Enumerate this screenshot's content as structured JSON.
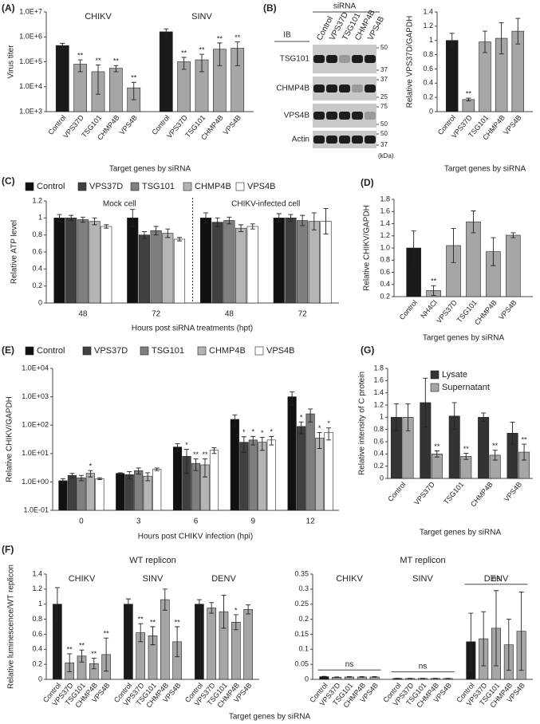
{
  "chart_data": [
    {
      "type": "bar",
      "panel": "(A)",
      "ylabel": "Virus titer",
      "xlabel": "Target genes by siRNA",
      "log_scale": true,
      "ylim": [
        1000,
        10000000
      ],
      "yticks": [
        {
          "value": 1000,
          "label": "1.0E+3"
        },
        {
          "value": 10000,
          "label": "1.0E+4"
        },
        {
          "value": 100000,
          "label": "1.0E+5"
        },
        {
          "value": 1000000,
          "label": "1.0E+6"
        },
        {
          "value": 10000000,
          "label": "1.0E+7"
        }
      ],
      "categories": [
        "Control",
        "VPS37D",
        "TSG101",
        "CHMP4B",
        "VPS4B"
      ],
      "colors": [
        "#1a1a1a",
        "#a6a6a6",
        "#a6a6a6",
        "#a6a6a6",
        "#a6a6a6"
      ],
      "groups": [
        {
          "name": "CHIKV",
          "values": [
            450000,
            80000,
            40000,
            55000,
            9000
          ],
          "errors": [
            100000,
            40000,
            35000,
            15000,
            6000
          ],
          "stars": [
            null,
            "**",
            "**",
            "**",
            "**"
          ]
        },
        {
          "name": "SINV",
          "values": [
            1600000,
            100000,
            120000,
            320000,
            350000
          ],
          "errors": [
            500000,
            50000,
            80000,
            250000,
            280000
          ],
          "stars": [
            null,
            "**",
            "**",
            "**",
            "**"
          ]
        }
      ]
    },
    {
      "type": "blot",
      "panel": "(B)",
      "title": "siRNA",
      "row_header": "IB",
      "lanes": [
        "Control",
        "VPS37D",
        "TSG101",
        "CHMP4B",
        "VPS4B"
      ],
      "rows": [
        {
          "name": "TSG101",
          "markers": [
            50,
            37
          ]
        },
        {
          "name": "CHMP4B",
          "markers": [
            37,
            25
          ]
        },
        {
          "name": "VPS4B",
          "markers": [
            75,
            50
          ]
        },
        {
          "name": "Actin",
          "markers": [
            50,
            37
          ]
        }
      ],
      "unit": "(kDa)"
    },
    {
      "type": "bar",
      "ylabel": "Relative VPS37D/GAPDH",
      "xlabel": "Target genes by siRNA",
      "ylim": [
        0,
        1.4
      ],
      "yticks": [
        0,
        0.2,
        0.4,
        0.6,
        0.8,
        1,
        1.2,
        1.4
      ],
      "categories": [
        "Control",
        "VPS37D",
        "TSG101",
        "CHMP4B",
        "VPS4B"
      ],
      "colors": [
        "#1a1a1a",
        "#a6a6a6",
        "#a6a6a6",
        "#a6a6a6",
        "#a6a6a6"
      ],
      "groups": [
        {
          "values": [
            1,
            0.17,
            0.98,
            1.03,
            1.13
          ],
          "errors": [
            0.1,
            0.02,
            0.15,
            0.22,
            0.18
          ],
          "stars": [
            null,
            "**",
            null,
            null,
            null
          ]
        }
      ]
    },
    {
      "type": "bar",
      "panel": "(C)",
      "ylabel": "Relative ATP level",
      "xlabel": "Hours post siRNA treatments (hpt)",
      "legend": "top",
      "ylim": [
        0,
        1.2
      ],
      "yticks": [
        0,
        0.2,
        0.4,
        0.6,
        0.8,
        1,
        1.2
      ],
      "annotations": [
        "Mock cell",
        "CHIKV-infected cell"
      ],
      "categories": [
        "48",
        "72",
        "48",
        "72"
      ],
      "series": [
        {
          "name": "Control",
          "color": "#111111",
          "values": [
            1.0,
            1.0,
            1.0,
            1.0
          ],
          "errors": [
            0.04,
            0.1,
            0.06,
            0.05
          ]
        },
        {
          "name": "VPS37D",
          "color": "#404040",
          "values": [
            1.0,
            0.8,
            0.95,
            1.0
          ],
          "errors": [
            0.03,
            0.04,
            0.05,
            0.04
          ]
        },
        {
          "name": "TSG101",
          "color": "#7f7f7f",
          "values": [
            0.98,
            0.85,
            0.97,
            0.97
          ],
          "errors": [
            0.03,
            0.05,
            0.04,
            0.06
          ]
        },
        {
          "name": "CHMP4B",
          "color": "#b4b4b4",
          "values": [
            0.96,
            0.82,
            0.88,
            0.96
          ],
          "errors": [
            0.04,
            0.05,
            0.04,
            0.1
          ]
        },
        {
          "name": "VPS4B",
          "color": "#ffffff",
          "values": [
            0.9,
            0.75,
            0.9,
            0.96
          ],
          "errors": [
            0.02,
            0.02,
            0.03,
            0.15
          ]
        }
      ]
    },
    {
      "type": "bar",
      "panel": "(D)",
      "ylabel": "Relative CHIKV/GAPDH",
      "xlabel": "Target genes by siRNA",
      "ylim": [
        0.2,
        1.8
      ],
      "yticks": [
        0.2,
        0.4,
        0.6,
        0.8,
        {
          "value": 1,
          "label": "1.0"
        },
        1.2,
        1.4,
        1.6,
        1.8
      ],
      "categories": [
        "Control",
        "NH4Cl",
        "VPS37D",
        "TSG101",
        "CHMP4B",
        "VPS4B"
      ],
      "colors": [
        "#1a1a1a",
        "#a6a6a6",
        "#a6a6a6",
        "#a6a6a6",
        "#a6a6a6",
        "#a6a6a6"
      ],
      "groups": [
        {
          "values": [
            1.0,
            0.3,
            1.04,
            1.43,
            0.94,
            1.21
          ],
          "errors": [
            0.28,
            0.08,
            0.28,
            0.18,
            0.23,
            0.04
          ],
          "stars": [
            null,
            "**",
            null,
            null,
            null,
            null
          ]
        }
      ]
    },
    {
      "type": "bar",
      "panel": "(E)",
      "ylabel": "Relative CHIKV/GAPDH",
      "xlabel": "Hours post CHIKV infection (hpi)",
      "legend": "top",
      "log_scale": true,
      "ylim": [
        0.1,
        10000
      ],
      "yticks": [
        {
          "value": 0.1,
          "label": "1.0E-01"
        },
        {
          "value": 1,
          "label": "1.0E+00"
        },
        {
          "value": 10,
          "label": "1.0E+01"
        },
        {
          "value": 100,
          "label": "1.0E+02"
        },
        {
          "value": 1000,
          "label": "1.0E+03"
        },
        {
          "value": 10000,
          "label": "1.0E+04"
        }
      ],
      "categories": [
        "0",
        "3",
        "6",
        "9",
        "12"
      ],
      "series": [
        {
          "name": "Control",
          "color": "#111111",
          "values": [
            1.1,
            2.0,
            17,
            160,
            1000
          ],
          "errors": [
            0.2,
            0.1,
            5,
            70,
            500
          ]
        },
        {
          "name": "VPS37D",
          "color": "#404040",
          "values": [
            1.7,
            1.8,
            8,
            25,
            90
          ],
          "errors": [
            0.3,
            0.5,
            6,
            14,
            40
          ],
          "stars": [
            null,
            null,
            "*",
            "*",
            "*"
          ]
        },
        {
          "name": "TSG101",
          "color": "#7f7f7f",
          "values": [
            1.4,
            2.5,
            4.5,
            30,
            250
          ],
          "errors": [
            0.3,
            0.6,
            2,
            10,
            120
          ],
          "stars": [
            null,
            null,
            "**",
            "*",
            null
          ]
        },
        {
          "name": "CHMP4B",
          "color": "#b4b4b4",
          "values": [
            2.0,
            1.6,
            4.0,
            25,
            35
          ],
          "errors": [
            0.5,
            0.5,
            2.5,
            12,
            20
          ],
          "stars": [
            "*",
            null,
            "**",
            "*",
            "*"
          ]
        },
        {
          "name": "VPS4B",
          "color": "#ffffff",
          "values": [
            1.3,
            2.8,
            13,
            30,
            55
          ],
          "errors": [
            0.1,
            0.3,
            3,
            10,
            25
          ],
          "stars": [
            null,
            null,
            null,
            "*",
            "*"
          ]
        }
      ]
    },
    {
      "type": "bar",
      "panel": "(G)",
      "ylabel": "Relative intensity of C protein",
      "xlabel": "Target genes by siRNA",
      "legend": "top-right",
      "ylim": [
        0,
        1.8
      ],
      "yticks": [
        0,
        0.2,
        0.4,
        0.6,
        0.8,
        1,
        1.2,
        1.4,
        1.6,
        1.8
      ],
      "categories": [
        "Control",
        "VPS37D",
        "TSG101",
        "CHMP4B",
        "VPS4B"
      ],
      "rotate_categories": true,
      "series": [
        {
          "name": "Lysate",
          "color": "#333333",
          "values": [
            1,
            1.24,
            1.02,
            1.0,
            0.74
          ],
          "errors": [
            0.22,
            0.4,
            0.22,
            0.07,
            0.18
          ]
        },
        {
          "name": "Supernatant",
          "color": "#a6a6a6",
          "values": [
            1,
            0.4,
            0.36,
            0.38,
            0.43
          ],
          "errors": [
            0.22,
            0.05,
            0.05,
            0.08,
            0.13
          ],
          "stars": [
            null,
            "**",
            "**",
            "**",
            "**"
          ]
        }
      ]
    },
    {
      "type": "bar",
      "panel": "(F)",
      "title": "WT replicon",
      "ylabel": "Relative luminescence/WT replicon",
      "xlabel": "Target genes by siRNA",
      "ylim": [
        0,
        1.4
      ],
      "yticks": [
        0,
        0.2,
        0.4,
        0.6,
        0.8,
        1,
        1.2,
        1.4
      ],
      "categories": [
        "Control",
        "VPS37D",
        "TSG101",
        "CHMP4B",
        "VPS4B"
      ],
      "colors": [
        "#1a1a1a",
        "#a6a6a6",
        "#a6a6a6",
        "#a6a6a6",
        "#a6a6a6"
      ],
      "groups": [
        {
          "name": "CHIKV",
          "values": [
            1.0,
            0.22,
            0.31,
            0.21,
            0.33
          ],
          "errors": [
            0.22,
            0.12,
            0.08,
            0.07,
            0.22
          ],
          "stars": [
            null,
            "**",
            "**",
            "**",
            "**"
          ]
        },
        {
          "name": "SINV",
          "values": [
            1.0,
            0.62,
            0.58,
            1.06,
            0.5
          ],
          "errors": [
            0.07,
            0.12,
            0.12,
            0.14,
            0.2
          ],
          "stars": [
            null,
            "**",
            "**",
            null,
            "**"
          ]
        },
        {
          "name": "DENV",
          "values": [
            1.0,
            0.95,
            0.9,
            0.76,
            0.93
          ],
          "errors": [
            0.06,
            0.07,
            0.22,
            0.1,
            0.06
          ],
          "stars": [
            null,
            null,
            null,
            "*",
            null
          ]
        }
      ]
    },
    {
      "type": "bar",
      "title": "MT replicon",
      "ylim": [
        0,
        0.35
      ],
      "yticks": [
        0,
        0.05,
        0.1,
        0.15,
        0.2,
        0.25,
        0.3,
        0.35
      ],
      "categories": [
        "Control",
        "VPS37D",
        "TSG101",
        "CHMP4B",
        "VPS4B"
      ],
      "colors": [
        "#1a1a1a",
        "#a6a6a6",
        "#a6a6a6",
        "#a6a6a6",
        "#a6a6a6"
      ],
      "groups": [
        {
          "name": "CHIKV",
          "values": [
            0.009,
            0.007,
            0.008,
            0.008,
            0.008
          ],
          "errors": [
            0.001,
            0.001,
            0.001,
            0.001,
            0.001
          ],
          "bracket": "ns"
        },
        {
          "name": "SINV",
          "values": [
            0.003,
            0.003,
            0.003,
            0.003,
            0.003
          ],
          "errors": [
            0.0005,
            0.0005,
            0.0005,
            0.0005,
            0.0005
          ],
          "bracket": "ns"
        },
        {
          "name": "DENV",
          "values": [
            0.125,
            0.135,
            0.17,
            0.115,
            0.16
          ],
          "errors": [
            0.095,
            0.09,
            0.125,
            0.085,
            0.13
          ],
          "bracket": "ns"
        }
      ]
    }
  ]
}
